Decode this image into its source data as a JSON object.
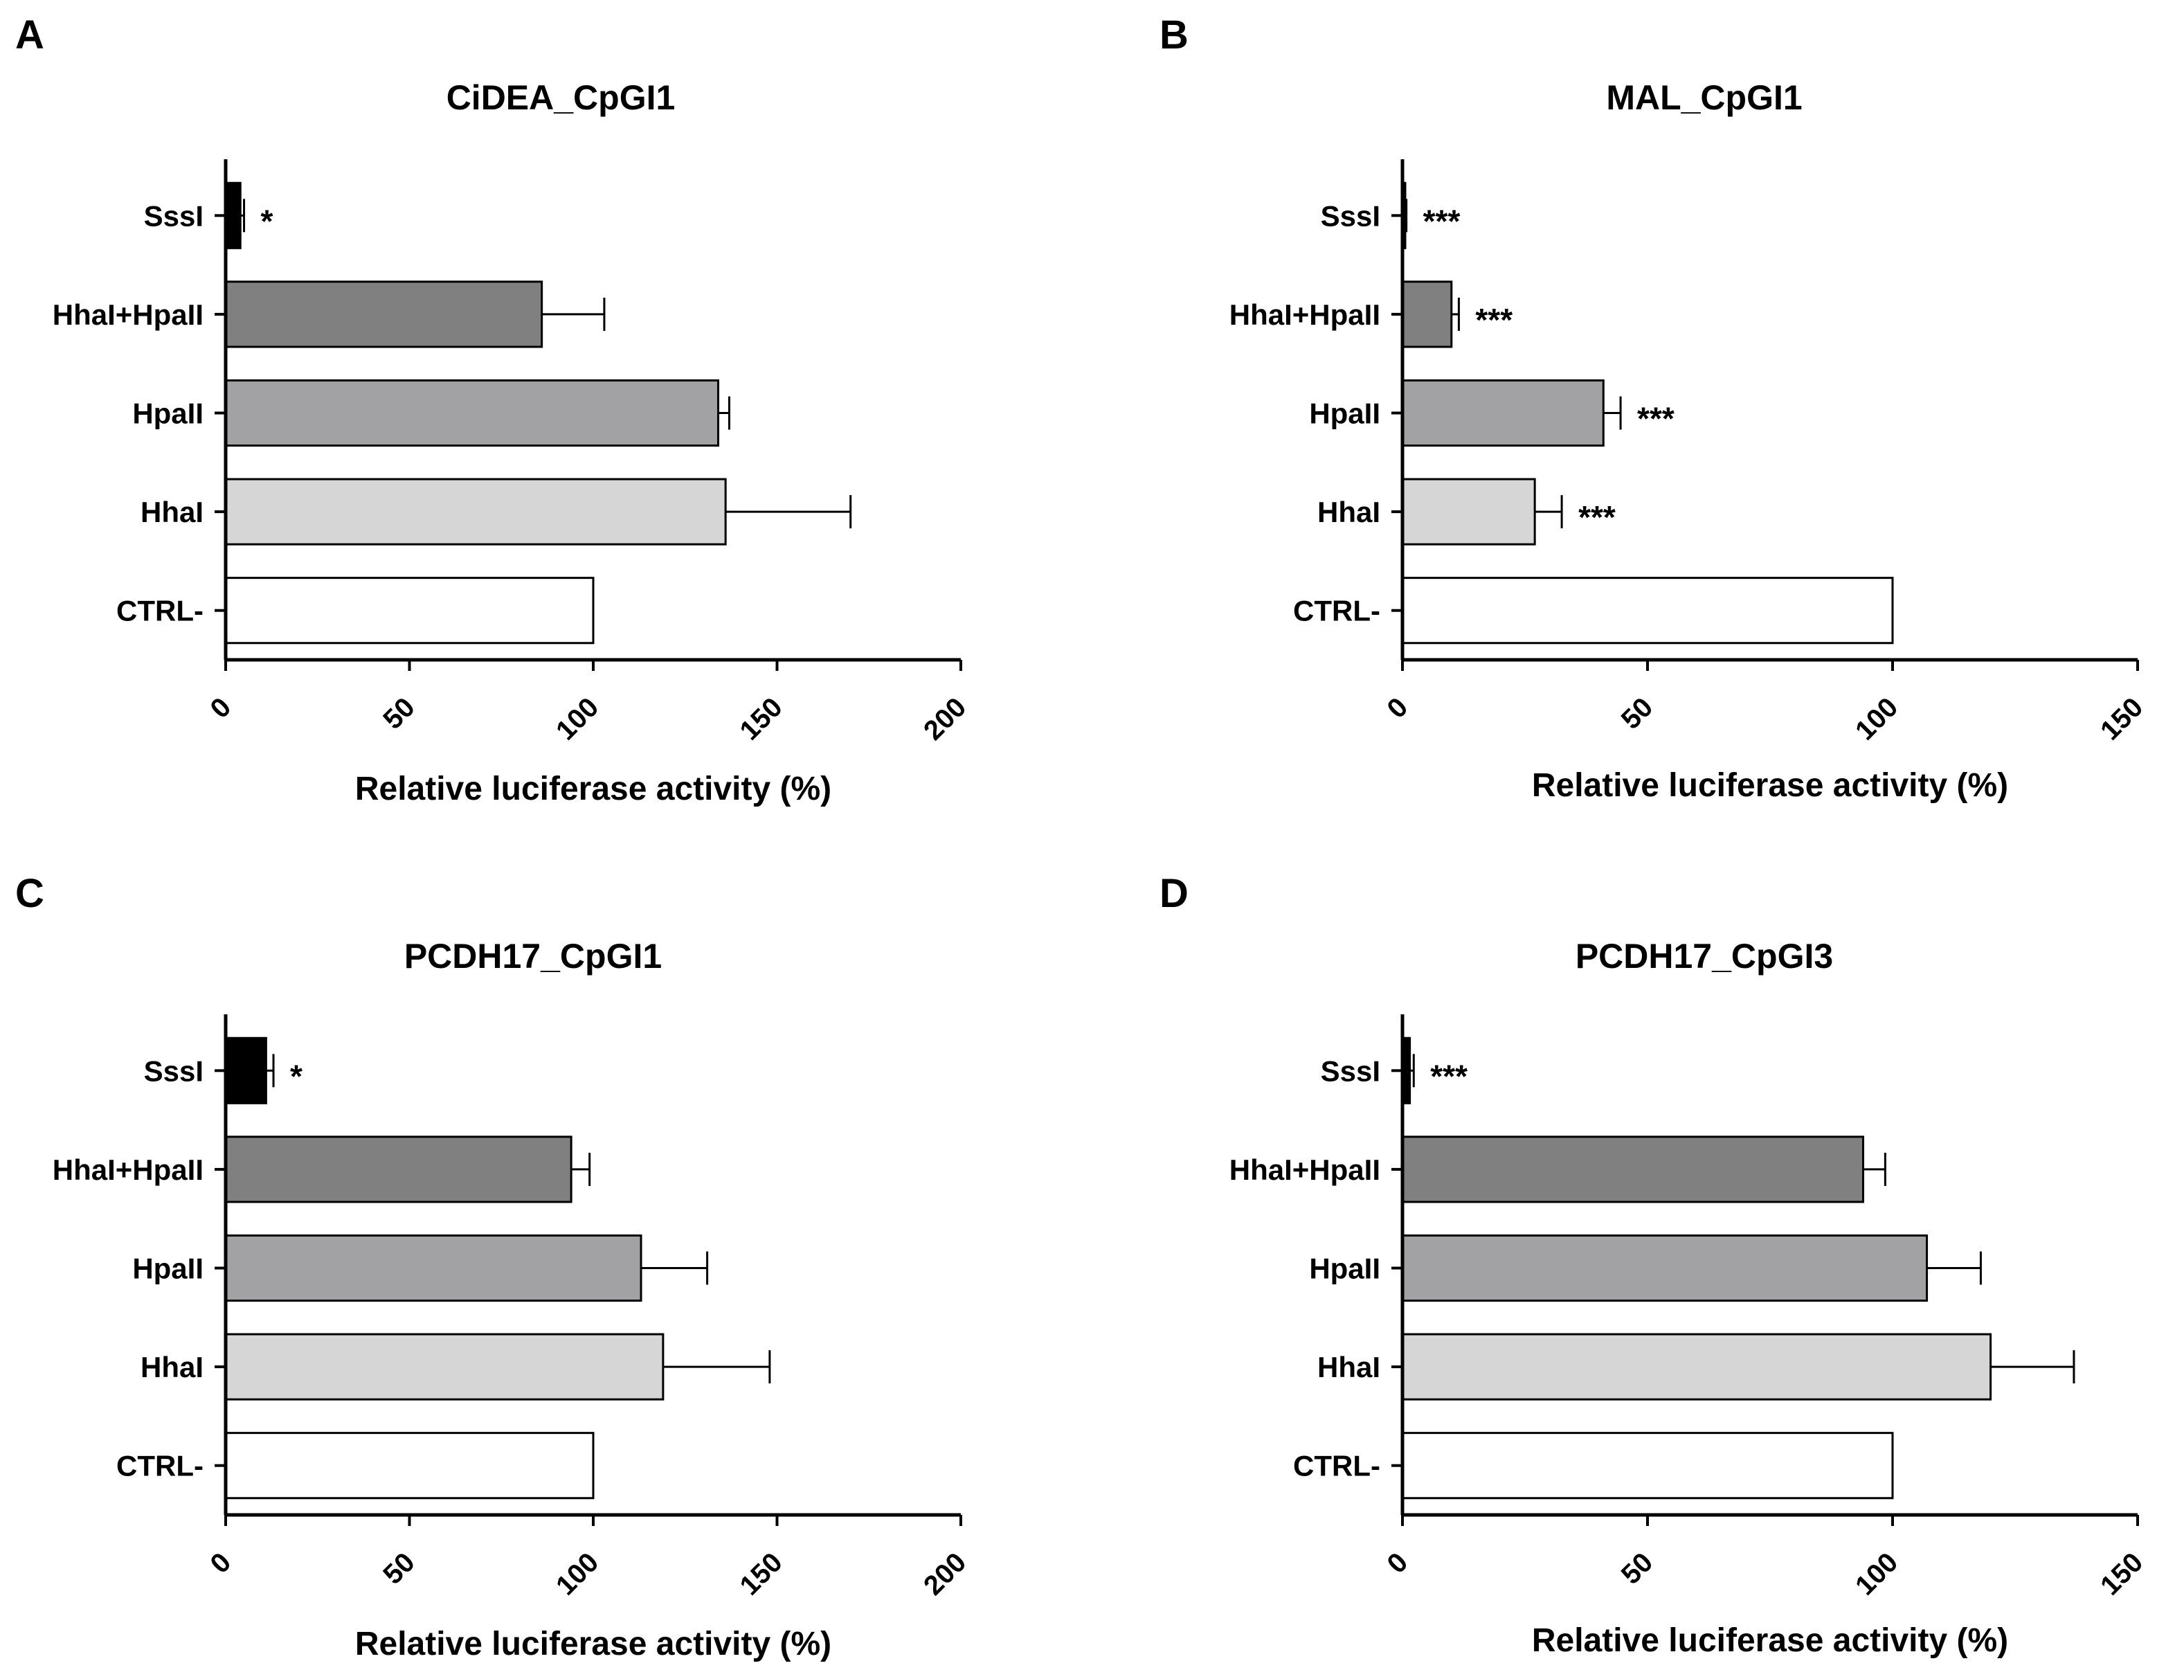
{
  "colors": {
    "SssI": "#000000",
    "HhaI+HpaII": "#808080",
    "HpaII": "#a2a2a5",
    "HhaI": "#d6d6d6",
    "CTRL-": "#ffffff",
    "axis": "#000000"
  },
  "chart_data": [
    {
      "panel": "A",
      "type": "bar",
      "orientation": "horizontal",
      "title": "CiDEA_CpGI1",
      "xlabel": "Relative luciferase activity (%)",
      "ylabel": "",
      "xlim": [
        0,
        200
      ],
      "xticks": [
        0,
        50,
        100,
        150,
        200
      ],
      "categories": [
        "SssI",
        "HhaI+HpaII",
        "HpaII",
        "HhaI",
        "CTRL-"
      ],
      "values": [
        4,
        86,
        134,
        136,
        100
      ],
      "errors": [
        1,
        17,
        3,
        34,
        0
      ],
      "significance": [
        "*",
        "",
        "",
        "",
        ""
      ]
    },
    {
      "panel": "B",
      "type": "bar",
      "orientation": "horizontal",
      "title": "MAL_CpGI1",
      "xlabel": "Relative luciferase activity (%)",
      "ylabel": "",
      "xlim": [
        0,
        150
      ],
      "xticks": [
        0,
        50,
        100,
        150
      ],
      "categories": [
        "SssI",
        "HhaI+HpaII",
        "HpaII",
        "HhaI",
        "CTRL-"
      ],
      "values": [
        0.5,
        10,
        41,
        27,
        100
      ],
      "errors": [
        0.3,
        1.5,
        3.5,
        5.5,
        0
      ],
      "significance": [
        "***",
        "***",
        "***",
        "***",
        ""
      ]
    },
    {
      "panel": "C",
      "type": "bar",
      "orientation": "horizontal",
      "title": "PCDH17_CpGI1",
      "xlabel": "Relative luciferase activity (%)",
      "ylabel": "",
      "xlim": [
        0,
        200
      ],
      "xticks": [
        0,
        50,
        100,
        150,
        200
      ],
      "categories": [
        "SssI",
        "HhaI+HpaII",
        "HpaII",
        "HhaI",
        "CTRL-"
      ],
      "values": [
        11,
        94,
        113,
        119,
        100
      ],
      "errors": [
        2,
        5,
        18,
        29,
        0
      ],
      "significance": [
        "*",
        "",
        "",
        "",
        ""
      ]
    },
    {
      "panel": "D",
      "type": "bar",
      "orientation": "horizontal",
      "title": "PCDH17_CpGI3",
      "xlabel": "Relative luciferase activity (%)",
      "ylabel": "",
      "xlim": [
        0,
        150
      ],
      "xticks": [
        0,
        50,
        100,
        150
      ],
      "categories": [
        "SssI",
        "HhaI+HpaII",
        "HpaII",
        "HhaI",
        "CTRL-"
      ],
      "values": [
        1.5,
        94,
        107,
        120,
        100
      ],
      "errors": [
        0.8,
        4.5,
        11,
        17,
        0
      ],
      "significance": [
        "***",
        "",
        "",
        "",
        ""
      ]
    }
  ]
}
